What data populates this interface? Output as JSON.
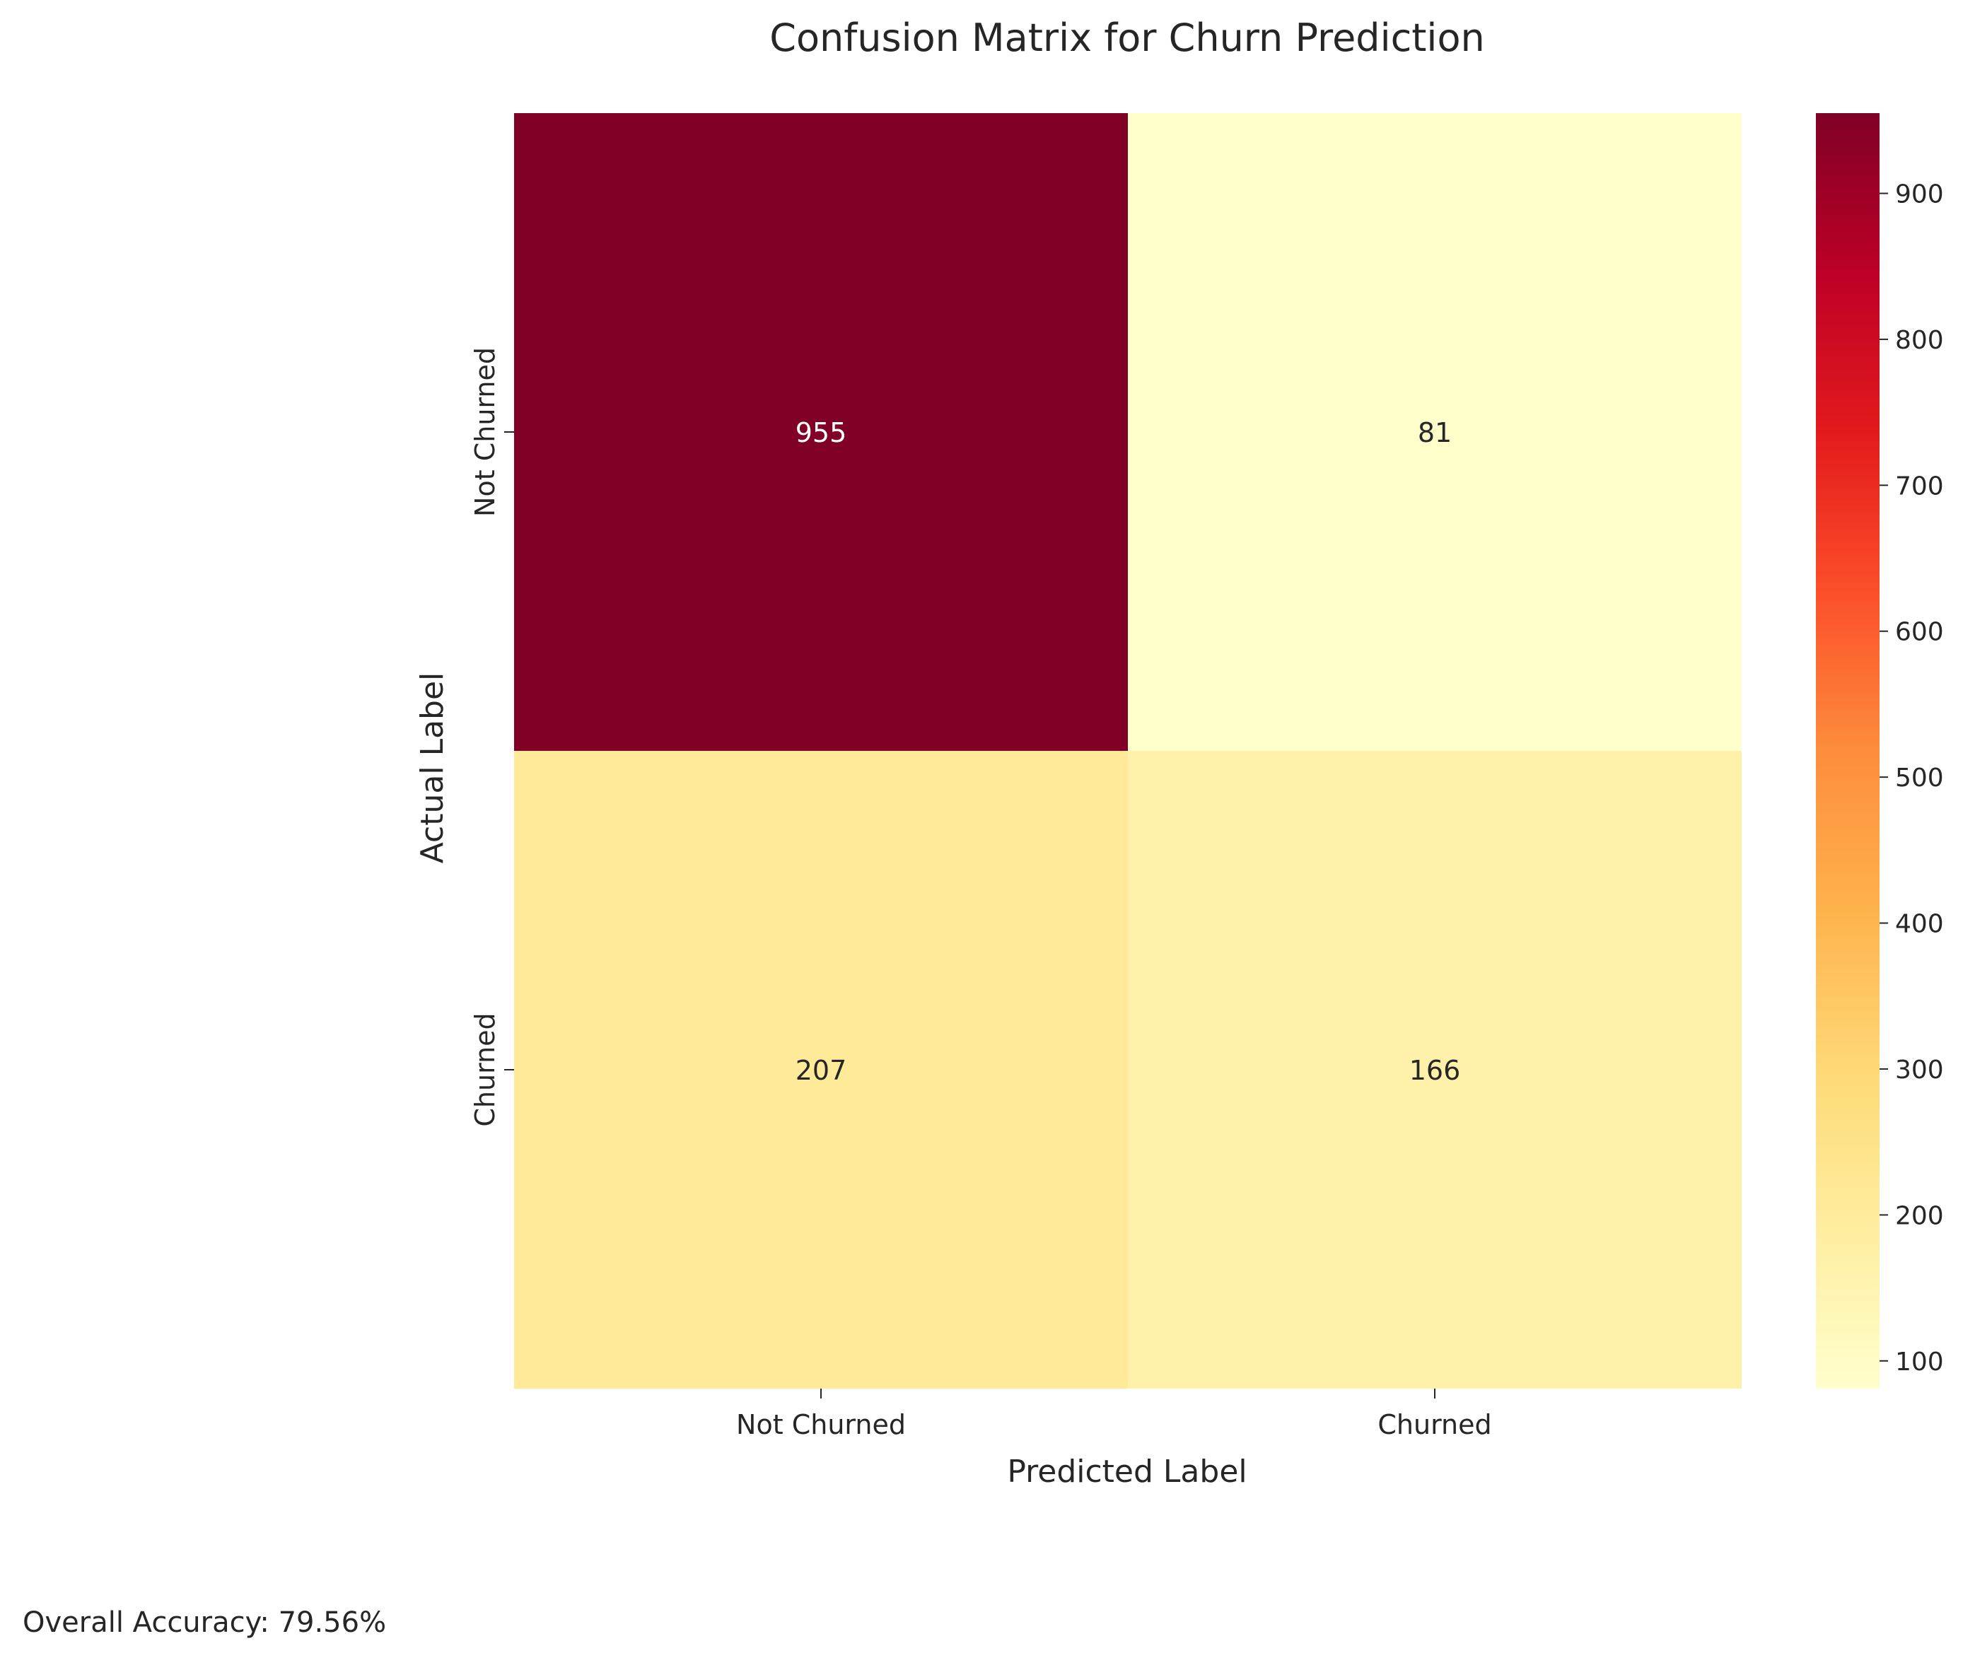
{
  "chart_data": {
    "type": "heatmap",
    "title": "Confusion Matrix for Churn Prediction",
    "xlabel": "Predicted Label",
    "ylabel": "Actual Label",
    "x_categories": [
      "Not Churned",
      "Churned"
    ],
    "y_categories": [
      "Not Churned",
      "Churned"
    ],
    "matrix": [
      [
        955,
        81
      ],
      [
        207,
        166
      ]
    ],
    "colormap": "YlOrRd",
    "colorbar": {
      "vmin": 81,
      "vmax": 955,
      "ticks": [
        100,
        200,
        300,
        400,
        500,
        600,
        700,
        800,
        900
      ],
      "tick_labels": [
        "100",
        "200",
        "300",
        "400",
        "500",
        "600",
        "700",
        "800",
        "900"
      ]
    },
    "grid": false
  },
  "footer": {
    "accuracy_text": "Overall Accuracy: 79.56%"
  },
  "colors": {
    "colormap_stops": [
      "#ffffcc",
      "#ffeda0",
      "#fed976",
      "#feb24c",
      "#fd8d3c",
      "#fc4e2a",
      "#e31a1c",
      "#bd0026",
      "#800026"
    ],
    "annotation_dark": "#262626",
    "annotation_light": "#ffffff"
  }
}
